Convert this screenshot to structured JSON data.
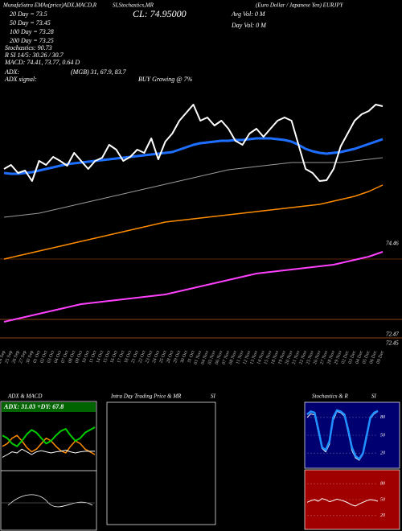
{
  "header": {
    "t1": "MunafaSutra EMAs(price)ADX,MACD,R",
    "t2": "SI,Stochastics,MR",
    "t3": "(Euro Dollar / Japanese Yen) EURJPY",
    "close": "CL: 74.95000",
    "avg_vol": "Avg Vol: 0  M",
    "day_vol": "Day Vol: 0  M",
    "ema20": "20 Day = 73.5",
    "ema50": "50 Day = 73.45",
    "ema100": "100 Day = 73.28",
    "ema200": "200 Day = 73.25",
    "stoch": "Stochastics: 90.73",
    "rsi": "R        SI 14/5: 30.26 / 30.7",
    "macd": "MACD: 74.41, 73.77, 0.64  D",
    "adx": "ADX:",
    "adx_val": "(MGB) 31, 67.9, 83.7",
    "adx_sig": "ADX  signal:",
    "signal": "BUY Growing @ 7%",
    "right1": "74.46",
    "right2": "72.47",
    "right3": "72.45"
  },
  "panels": {
    "adx_title": "ADX  & MACD",
    "adx_box": "ADX: 31.03 +DY: 67.8",
    "intra_title": "Intra  Day Trading Price  & MR",
    "intra_si": "SI",
    "stoch_title": "Stochastics & R",
    "stoch_si": "SI"
  },
  "chart_data": [
    {
      "type": "line",
      "x": [
        "24 Sep",
        "25 Sep",
        "26 Sep",
        "27 Sep",
        "30 Sep",
        "01 Oct",
        "02 Oct",
        "03 Oct",
        "04 Oct",
        "07 Oct",
        "08 Oct",
        "09 Oct",
        "10 Oct",
        "11 Oct",
        "14 Oct",
        "15 Oct",
        "16 Oct",
        "17 Oct",
        "18 Oct",
        "21 Oct",
        "22 Oct",
        "23 Oct",
        "24 Oct",
        "25 Oct",
        "28 Oct",
        "29 Oct",
        "30 Oct",
        "31 Oct",
        "01 Nov",
        "04 Nov",
        "05 Nov",
        "06 Nov",
        "07 Nov",
        "08 Nov",
        "11 Nov",
        "12 Nov",
        "13 Nov",
        "14 Nov",
        "15 Nov",
        "18 Nov",
        "19 Nov",
        "20 Nov",
        "21 Nov",
        "22 Nov",
        "25 Nov",
        "26 Nov",
        "27 Nov",
        "28 Nov",
        "29 Nov",
        "02 Dec",
        "03 Dec",
        "04 Dec",
        "05 Dec",
        "06 Dec",
        "09 Dec"
      ],
      "ylim": [
        72.1,
        75.8
      ],
      "series": [
        {
          "color": "#9a9a9a",
          "width": 1,
          "values": [
            73.7,
            73.71,
            73.72,
            73.73,
            73.74,
            73.75,
            73.77,
            73.79,
            73.81,
            73.83,
            73.85,
            73.87,
            73.89,
            73.91,
            73.93,
            73.95,
            73.97,
            73.99,
            74.01,
            74.03,
            74.05,
            74.07,
            74.09,
            74.11,
            74.13,
            74.15,
            74.17,
            74.19,
            74.21,
            74.23,
            74.25,
            74.27,
            74.29,
            74.3,
            74.31,
            74.32,
            74.33,
            74.34,
            74.35,
            74.36,
            74.37,
            74.38,
            74.38,
            74.38,
            74.38,
            74.38,
            74.38,
            74.38,
            74.38,
            74.39,
            74.4,
            74.41,
            74.42,
            74.43,
            74.44
          ]
        },
        {
          "color": "#ff8c00",
          "width": 1.5,
          "values": [
            73.18,
            73.2,
            73.22,
            73.24,
            73.26,
            73.28,
            73.3,
            73.32,
            73.34,
            73.36,
            73.38,
            73.4,
            73.42,
            73.44,
            73.46,
            73.48,
            73.5,
            73.52,
            73.54,
            73.56,
            73.58,
            73.6,
            73.62,
            73.64,
            73.65,
            73.66,
            73.67,
            73.68,
            73.69,
            73.7,
            73.71,
            73.72,
            73.73,
            73.74,
            73.75,
            73.76,
            73.77,
            73.78,
            73.79,
            73.8,
            73.81,
            73.82,
            73.83,
            73.84,
            73.85,
            73.86,
            73.88,
            73.9,
            73.92,
            73.94,
            73.96,
            73.99,
            74.02,
            74.06,
            74.1
          ]
        },
        {
          "color": "#ff40ff",
          "width": 2,
          "values": [
            72.4,
            72.42,
            72.44,
            72.46,
            72.48,
            72.5,
            72.52,
            72.54,
            72.56,
            72.58,
            72.6,
            72.62,
            72.63,
            72.64,
            72.65,
            72.66,
            72.67,
            72.68,
            72.69,
            72.7,
            72.71,
            72.72,
            72.73,
            72.74,
            72.76,
            72.78,
            72.8,
            72.82,
            72.84,
            72.86,
            72.88,
            72.9,
            72.92,
            72.94,
            72.96,
            72.98,
            73.0,
            73.01,
            73.02,
            73.03,
            73.04,
            73.05,
            73.06,
            73.07,
            73.08,
            73.09,
            73.1,
            73.11,
            73.13,
            73.15,
            73.17,
            73.19,
            73.21,
            73.24,
            73.27
          ]
        },
        {
          "color": "#1e6fff",
          "width": 3,
          "values": [
            74.25,
            74.24,
            74.24,
            74.25,
            74.26,
            74.28,
            74.3,
            74.32,
            74.34,
            74.36,
            74.37,
            74.38,
            74.39,
            74.4,
            74.41,
            74.42,
            74.43,
            74.44,
            74.45,
            74.46,
            74.47,
            74.48,
            74.49,
            74.5,
            74.51,
            74.54,
            74.57,
            74.6,
            74.62,
            74.63,
            74.64,
            74.65,
            74.65,
            74.66,
            74.66,
            74.67,
            74.68,
            74.68,
            74.68,
            74.67,
            74.66,
            74.64,
            74.6,
            74.55,
            74.52,
            74.5,
            74.49,
            74.5,
            74.51,
            74.53,
            74.55,
            74.58,
            74.61,
            74.64,
            74.67
          ]
        },
        {
          "color": "#ffffff",
          "width": 2,
          "values": [
            74.3,
            74.35,
            74.25,
            74.28,
            74.15,
            74.4,
            74.35,
            74.45,
            74.4,
            74.34,
            74.5,
            74.4,
            74.3,
            74.4,
            74.44,
            74.6,
            74.54,
            74.4,
            74.45,
            74.54,
            74.5,
            74.68,
            74.42,
            74.64,
            74.74,
            74.9,
            75.0,
            75.1,
            74.9,
            74.94,
            74.84,
            74.9,
            74.8,
            74.65,
            74.6,
            74.74,
            74.8,
            74.7,
            74.8,
            74.9,
            74.94,
            74.9,
            74.6,
            74.3,
            74.25,
            74.15,
            74.16,
            74.3,
            74.58,
            74.74,
            74.9,
            74.98,
            75.02,
            75.1,
            75.08
          ]
        }
      ]
    },
    {
      "type": "line",
      "ylim": [
        0,
        100
      ],
      "series": [
        {
          "color": "#ff8c00",
          "width": 1.5,
          "values": [
            40,
            45,
            55,
            60,
            50,
            38,
            30,
            35,
            45,
            55,
            50,
            40,
            32,
            28,
            40,
            50,
            45,
            35,
            30,
            25
          ]
        },
        {
          "color": "#ffffff",
          "width": 1,
          "values": [
            20,
            25,
            30,
            28,
            35,
            30,
            25,
            30,
            32,
            30,
            28,
            30,
            31,
            33,
            30,
            28,
            30,
            31,
            31,
            31
          ]
        },
        {
          "color": "#00cc00",
          "width": 2,
          "values": [
            60,
            55,
            45,
            40,
            50,
            62,
            70,
            65,
            55,
            45,
            50,
            60,
            68,
            72,
            60,
            50,
            55,
            65,
            70,
            75
          ]
        }
      ]
    },
    {
      "type": "line",
      "ylim": [
        0,
        100
      ],
      "yticks": [
        80,
        50,
        20
      ],
      "series": [
        {
          "color": "#ffffff",
          "width": 1,
          "values": [
            80,
            86,
            84,
            55,
            28,
            22,
            35,
            75,
            90,
            88,
            82,
            55,
            25,
            12,
            8,
            18,
            45,
            78,
            86,
            90
          ]
        },
        {
          "color": "#1e90ff",
          "width": 2.5,
          "values": [
            85,
            90,
            88,
            60,
            30,
            25,
            40,
            80,
            92,
            90,
            85,
            60,
            30,
            15,
            10,
            20,
            50,
            80,
            88,
            91
          ]
        }
      ]
    },
    {
      "type": "line",
      "ylim": [
        0,
        100
      ],
      "yticks": [
        80,
        50,
        20
      ],
      "series": [
        {
          "color": "#ffffff",
          "width": 1,
          "values": [
            45,
            48,
            50,
            47,
            52,
            50,
            46,
            48,
            51,
            49,
            47,
            44,
            40,
            38,
            42,
            45,
            48,
            50,
            49,
            47
          ]
        }
      ]
    }
  ]
}
